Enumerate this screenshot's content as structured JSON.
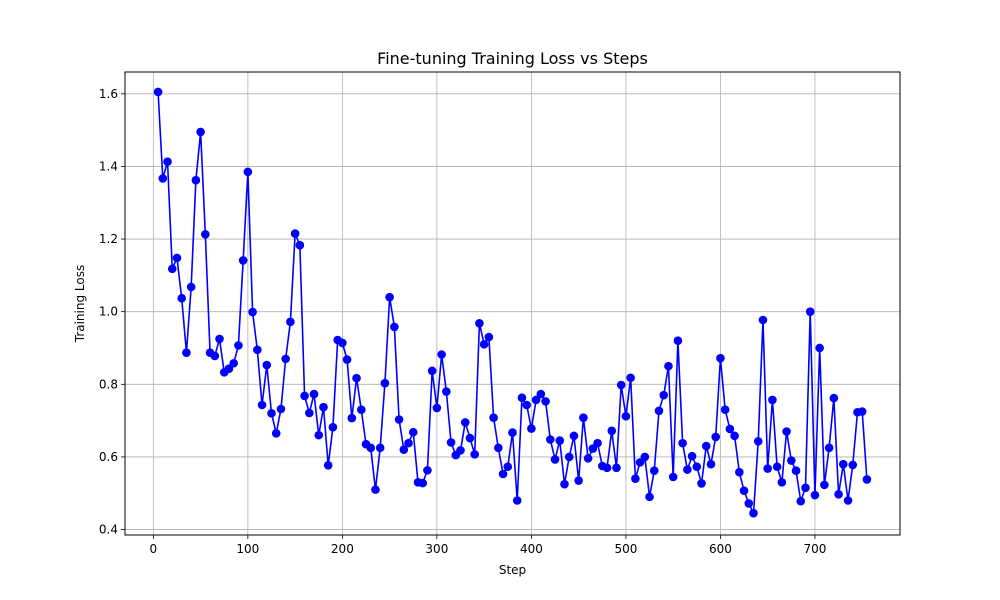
{
  "chart_data": {
    "type": "line",
    "title": "Fine-tuning Training Loss vs Steps",
    "xlabel": "Step",
    "ylabel": "Training Loss",
    "xlim": [
      -30,
      790
    ],
    "ylim": [
      0.385,
      1.66
    ],
    "xticks": [
      0,
      100,
      200,
      300,
      400,
      500,
      600,
      700
    ],
    "yticks": [
      0.4,
      0.6,
      0.8,
      1.0,
      1.2,
      1.4,
      1.6
    ],
    "ytick_labels": [
      "0.4",
      "0.6",
      "0.8",
      "1.0",
      "1.2",
      "1.4",
      "1.6"
    ],
    "grid": true,
    "series": [
      {
        "color": "#0000ff",
        "marker": "circle",
        "x": [
          5,
          10,
          15,
          20,
          25,
          30,
          35,
          40,
          45,
          50,
          55,
          60,
          65,
          70,
          75,
          80,
          85,
          90,
          95,
          100,
          105,
          110,
          115,
          120,
          125,
          130,
          135,
          140,
          145,
          150,
          155,
          160,
          165,
          170,
          175,
          180,
          185,
          190,
          195,
          200,
          205,
          210,
          215,
          220,
          225,
          230,
          235,
          240,
          245,
          250,
          255,
          260,
          265,
          270,
          275,
          280,
          285,
          290,
          295,
          300,
          305,
          310,
          315,
          320,
          325,
          330,
          335,
          340,
          345,
          350,
          355,
          360,
          365,
          370,
          375,
          380,
          385,
          390,
          395,
          400,
          405,
          410,
          415,
          420,
          425,
          430,
          435,
          440,
          445,
          450,
          455,
          460,
          465,
          470,
          475,
          480,
          485,
          490,
          495,
          500,
          505,
          510,
          515,
          520,
          525,
          530,
          535,
          540,
          545,
          550,
          555,
          560,
          565,
          570,
          575,
          580,
          585,
          590,
          595,
          600,
          605,
          610,
          615,
          620,
          625,
          630,
          635,
          640,
          645,
          650,
          655,
          660,
          665,
          670,
          675,
          680,
          685,
          690,
          695,
          700,
          705,
          710,
          715,
          720,
          725,
          730,
          735,
          740,
          745,
          750,
          755
        ],
        "y": [
          1.605,
          1.367,
          1.413,
          1.118,
          1.148,
          1.037,
          0.887,
          1.068,
          1.362,
          1.495,
          1.213,
          0.887,
          0.878,
          0.925,
          0.833,
          0.843,
          0.858,
          0.907,
          1.141,
          1.385,
          0.999,
          0.895,
          0.743,
          0.853,
          0.72,
          0.665,
          0.732,
          0.87,
          0.972,
          1.215,
          1.183,
          0.768,
          0.721,
          0.773,
          0.66,
          0.737,
          0.577,
          0.682,
          0.922,
          0.914,
          0.868,
          0.707,
          0.817,
          0.73,
          0.635,
          0.625,
          0.51,
          0.625,
          0.803,
          1.04,
          0.958,
          0.703,
          0.62,
          0.638,
          0.668,
          0.53,
          0.528,
          0.563,
          0.837,
          0.735,
          0.882,
          0.78,
          0.64,
          0.605,
          0.618,
          0.695,
          0.652,
          0.607,
          0.968,
          0.91,
          0.93,
          0.708,
          0.625,
          0.553,
          0.573,
          0.667,
          0.48,
          0.763,
          0.743,
          0.678,
          0.757,
          0.773,
          0.753,
          0.648,
          0.593,
          0.645,
          0.525,
          0.6,
          0.658,
          0.535,
          0.708,
          0.596,
          0.623,
          0.638,
          0.575,
          0.57,
          0.672,
          0.57,
          0.798,
          0.712,
          0.818,
          0.54,
          0.585,
          0.6,
          0.49,
          0.562,
          0.727,
          0.77,
          0.85,
          0.545,
          0.92,
          0.638,
          0.565,
          0.602,
          0.573,
          0.527,
          0.63,
          0.58,
          0.655,
          0.872,
          0.73,
          0.677,
          0.658,
          0.558,
          0.507,
          0.472,
          0.445,
          0.643,
          0.977,
          0.568,
          0.757,
          0.573,
          0.53,
          0.67,
          0.59,
          0.562,
          0.478,
          0.515,
          1.0,
          0.495,
          0.9,
          0.523,
          0.625,
          0.762,
          0.497,
          0.58,
          0.48,
          0.578,
          0.723,
          0.725,
          0.538
        ]
      }
    ]
  }
}
